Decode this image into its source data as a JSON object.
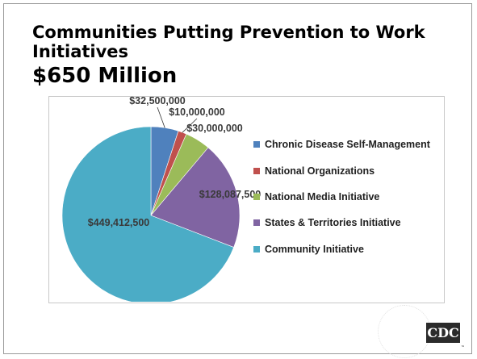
{
  "slide": {
    "title_line1": "Communities Putting Prevention to Work Initiatives",
    "title_line2": "$650 Million"
  },
  "logo": {
    "text": "CDC",
    "tm": "™"
  },
  "chart_data": {
    "type": "pie",
    "title": "",
    "legend_position": "right",
    "series": [
      {
        "name": "Chronic Disease Self-Management",
        "value": 32500000,
        "label": "$32,500,000",
        "color": "#4f81bd"
      },
      {
        "name": "National Organizations",
        "value": 10000000,
        "label": "$10,000,000",
        "color": "#c0504d"
      },
      {
        "name": "National Media Initiative",
        "value": 30000000,
        "label": "$30,000,000",
        "color": "#9bbb59"
      },
      {
        "name": "States & Territories Initiative",
        "value": 128087500,
        "label": "$128,087,500",
        "color": "#8064a2"
      },
      {
        "name": "Community Initiative",
        "value": 449412500,
        "label": "$449,412,500",
        "color": "#4bacc6"
      }
    ]
  }
}
